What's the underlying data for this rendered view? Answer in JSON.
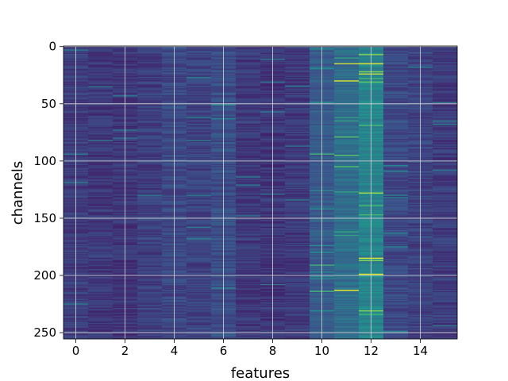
{
  "chart_data": {
    "type": "heatmap",
    "title": "",
    "xlabel": "features",
    "ylabel": "channels",
    "x_ticks": [
      0,
      2,
      4,
      6,
      8,
      10,
      12,
      14
    ],
    "y_ticks": [
      0,
      50,
      100,
      150,
      200,
      250
    ],
    "xlim": [
      -0.5,
      15.5
    ],
    "ylim": [
      255.5,
      -0.5
    ],
    "y_inverted": true,
    "grid": true,
    "n_rows": 256,
    "n_cols": 16,
    "colormap": "viridis",
    "colormap_stops": [
      "#440154",
      "#3b528b",
      "#21918c",
      "#5ec962",
      "#fde725"
    ],
    "column_mean_values": [
      0.18,
      0.17,
      0.16,
      0.19,
      0.22,
      0.2,
      0.24,
      0.17,
      0.16,
      0.17,
      0.28,
      0.36,
      0.45,
      0.22,
      0.2,
      0.18
    ],
    "highlighted_cells": [
      {
        "col": 11,
        "row": 15,
        "value": 0.92
      },
      {
        "col": 11,
        "row": 30,
        "value": 0.95
      },
      {
        "col": 11,
        "row": 105,
        "value": 0.7
      },
      {
        "col": 11,
        "row": 213,
        "value": 0.98
      },
      {
        "col": 12,
        "row": 15,
        "value": 0.96
      },
      {
        "col": 12,
        "row": 24,
        "value": 0.9
      },
      {
        "col": 12,
        "row": 31,
        "value": 0.75
      },
      {
        "col": 12,
        "row": 128,
        "value": 0.85
      },
      {
        "col": 12,
        "row": 185,
        "value": 0.94
      },
      {
        "col": 12,
        "row": 199,
        "value": 0.97
      }
    ]
  }
}
